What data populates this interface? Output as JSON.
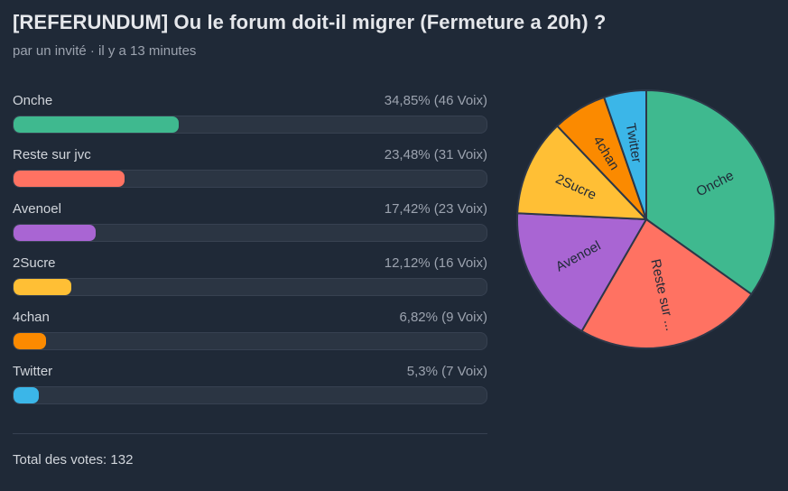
{
  "poll": {
    "title": "[REFERUNDUM] Ou le forum doit-il migrer (Fermeture a 20h) ?",
    "meta": "par un invité · il y a 13 minutes",
    "total_label": "Total des votes: 132",
    "options": [
      {
        "label": "Onche",
        "result": "34,85% (46 Voix)",
        "percent": 34.85,
        "votes": 46,
        "color": "#3fb98f",
        "pie_label": "Onche"
      },
      {
        "label": "Reste sur jvc",
        "result": "23,48% (31 Voix)",
        "percent": 23.48,
        "votes": 31,
        "color": "#ff7262",
        "pie_label": "Reste sur ..."
      },
      {
        "label": "Avenoel",
        "result": "17,42% (23 Voix)",
        "percent": 17.42,
        "votes": 23,
        "color": "#a965d3",
        "pie_label": "Avenoel"
      },
      {
        "label": "2Sucre",
        "result": "12,12% (16 Voix)",
        "percent": 12.12,
        "votes": 16,
        "color": "#ffbf35",
        "pie_label": "2Sucre"
      },
      {
        "label": "4chan",
        "result": "6,82% (9 Voix)",
        "percent": 6.82,
        "votes": 9,
        "color": "#fb8a00",
        "pie_label": "4chan"
      },
      {
        "label": "Twitter",
        "result": "5,3% (7 Voix)",
        "percent": 5.3,
        "votes": 7,
        "color": "#3bb6e8",
        "pie_label": "Twitter"
      }
    ]
  }
}
